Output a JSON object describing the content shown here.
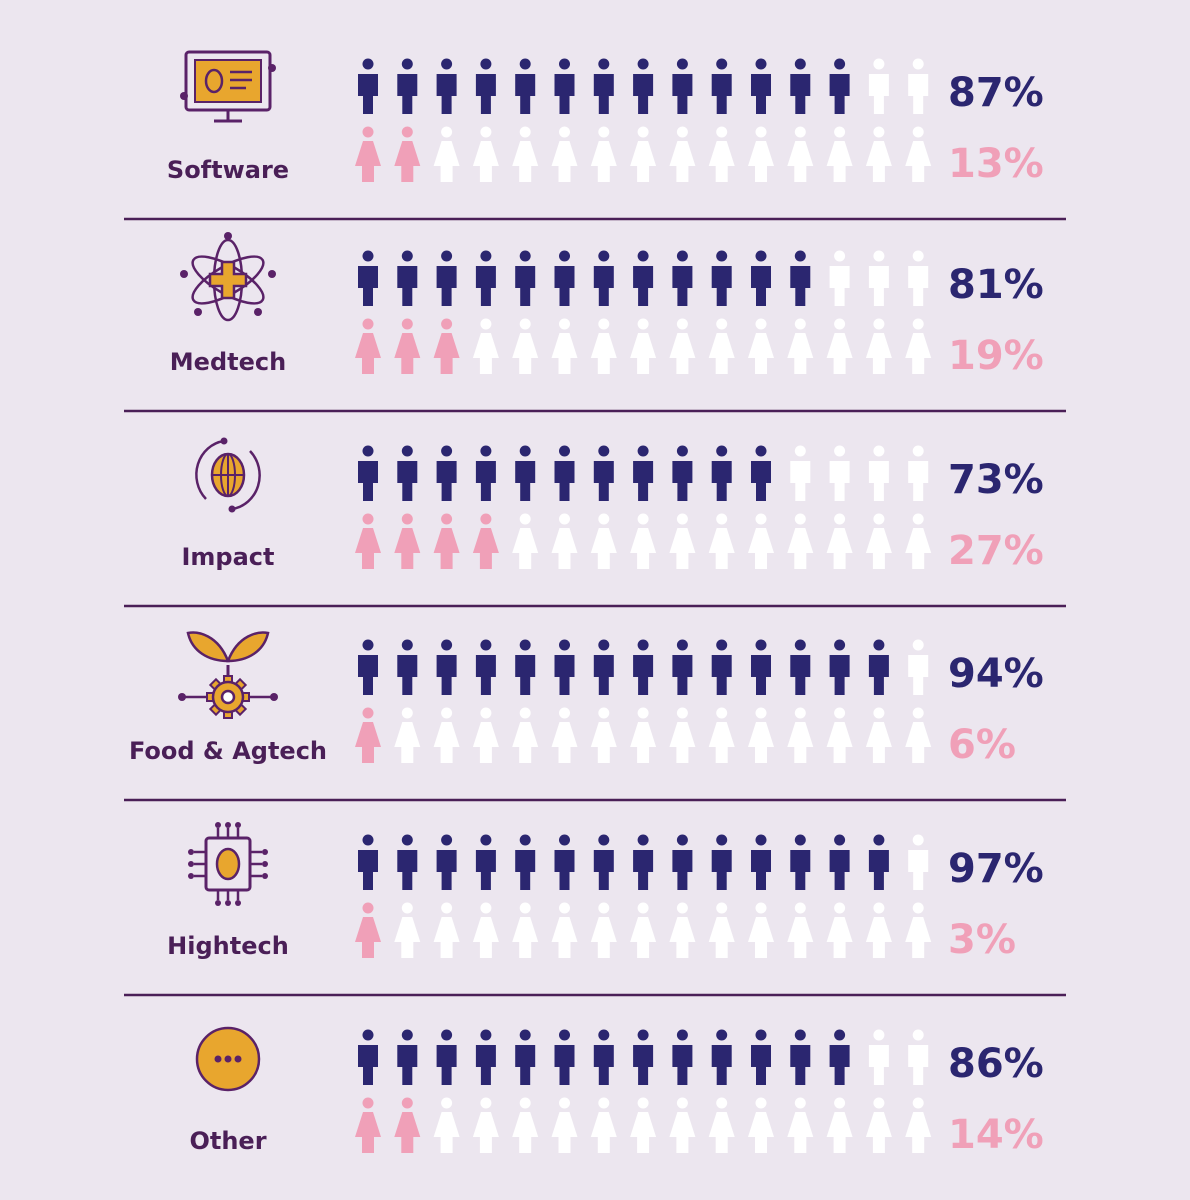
{
  "colors": {
    "background": "#ece6ef",
    "male": "#2b2670",
    "female": "#f0a0b8",
    "empty": "#ffffff",
    "label": "#4a1f57",
    "divider": "#4a1f57",
    "icon_line": "#5a2268",
    "icon_fill": "#e8a62e"
  },
  "chart_data": {
    "type": "pictogram",
    "icons_per_row": 15,
    "series": [
      {
        "name": "male"
      },
      {
        "name": "female"
      }
    ],
    "rows": [
      {
        "category": "Software",
        "icon": "computer-monitor-icon",
        "male_pct": 87,
        "female_pct": 13,
        "male_label": "87%",
        "female_label": "13%",
        "male_icons": 13,
        "female_icons": 2
      },
      {
        "category": "Medtech",
        "icon": "atom-medical-cross-icon",
        "male_pct": 81,
        "female_pct": 19,
        "male_label": "81%",
        "female_label": "19%",
        "male_icons": 12,
        "female_icons": 3
      },
      {
        "category": "Impact",
        "icon": "globe-egg-icon",
        "male_pct": 73,
        "female_pct": 27,
        "male_label": "73%",
        "female_label": "27%",
        "male_icons": 11,
        "female_icons": 4
      },
      {
        "category": "Food & Agtech",
        "icon": "sprout-gear-icon",
        "male_pct": 94,
        "female_pct": 6,
        "male_label": "94%",
        "female_label": "6%",
        "male_icons": 14,
        "female_icons": 1
      },
      {
        "category": "Hightech",
        "icon": "microchip-egg-icon",
        "male_pct": 97,
        "female_pct": 3,
        "male_label": "97%",
        "female_label": "3%",
        "male_icons": 14,
        "female_icons": 1
      },
      {
        "category": "Other",
        "icon": "more-dots-icon",
        "male_pct": 86,
        "female_pct": 14,
        "male_label": "86%",
        "female_label": "14%",
        "male_icons": 13,
        "female_icons": 2
      }
    ]
  }
}
